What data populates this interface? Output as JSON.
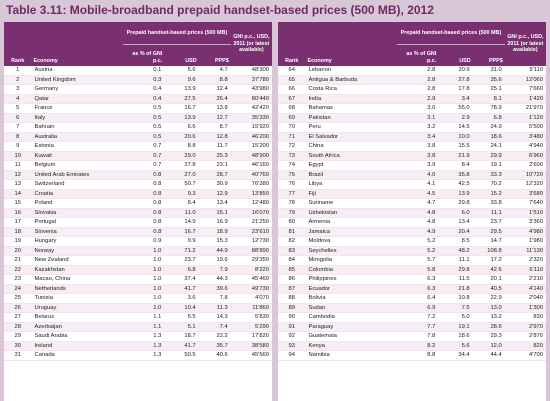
{
  "title": "Table 3.11: Mobile-broadband prepaid handset-based prices (500 MB), 2012",
  "headers": {
    "group": "Prepaid handset-based prices (500 MB)",
    "gni": "GNI p.c., USD, 2011 (or latest available)",
    "rank": "Rank",
    "economy": "Economy",
    "pct": "as % of GNI p.c.",
    "usd": "USD",
    "ppp": "PPP$"
  },
  "left_rows": [
    [
      "1",
      "Austria",
      "0.1",
      "5.6",
      "4.7",
      "48'300"
    ],
    [
      "2",
      "United Kingdom",
      "0.3",
      "9.6",
      "8.8",
      "37'780"
    ],
    [
      "3",
      "Germany",
      "0.4",
      "13.9",
      "12.4",
      "43'980"
    ],
    [
      "4",
      "Qatar",
      "0.4",
      "27.5",
      "26.4",
      "80'440"
    ],
    [
      "5",
      "France",
      "0.5",
      "16.7",
      "13.8",
      "42'420"
    ],
    [
      "6",
      "Italy",
      "0.5",
      "13.9",
      "12.7",
      "35'330"
    ],
    [
      "7",
      "Bahrain",
      "0.5",
      "6.6",
      "8.7",
      "15'920"
    ],
    [
      "8",
      "Australia",
      "0.5",
      "20.6",
      "12.8",
      "46'200"
    ],
    [
      "9",
      "Estonia",
      "0.7",
      "8.8",
      "11.7",
      "15'200"
    ],
    [
      "10",
      "Kuwait",
      "0.7",
      "29.0",
      "25.3",
      "48'900"
    ],
    [
      "11",
      "Belgium",
      "0.7",
      "27.8",
      "23.1",
      "46'160"
    ],
    [
      "12",
      "United Arab Emirates",
      "0.8",
      "27.0",
      "28.7",
      "40'760"
    ],
    [
      "13",
      "Switzerland",
      "0.8",
      "50.7",
      "30.9",
      "76'380"
    ],
    [
      "14",
      "Croatia",
      "0.8",
      "9.3",
      "12.9",
      "13'850"
    ],
    [
      "15",
      "Poland",
      "0.8",
      "8.4",
      "13.4",
      "12'480"
    ],
    [
      "16",
      "Slovakia",
      "0.8",
      "11.0",
      "15.1",
      "16'070"
    ],
    [
      "17",
      "Portugal",
      "0.8",
      "14.9",
      "16.9",
      "21'250"
    ],
    [
      "18",
      "Slovenia",
      "0.8",
      "16.7",
      "18.9",
      "23'610"
    ],
    [
      "19",
      "Hungary",
      "0.9",
      "9.9",
      "15.3",
      "12'730"
    ],
    [
      "20",
      "Norway",
      "1.0",
      "71.2",
      "44.9",
      "88'890"
    ],
    [
      "21",
      "New Zealand",
      "1.0",
      "23.7",
      "19.6",
      "29'350"
    ],
    [
      "22",
      "Kazakhstan",
      "1.0",
      "6.8",
      "7.9",
      "8'220"
    ],
    [
      "23",
      "Macao, China",
      "1.0",
      "37.4",
      "44.3",
      "45'460"
    ],
    [
      "24",
      "Netherlands",
      "1.0",
      "41.7",
      "39.6",
      "49'730"
    ],
    [
      "25",
      "Tunisia",
      "1.0",
      "3.6",
      "7.8",
      "4'070"
    ],
    [
      "26",
      "Uruguay",
      "1.0",
      "10.4",
      "11.3",
      "11'860"
    ],
    [
      "27",
      "Belarus",
      "1.1",
      "5.5",
      "14.3",
      "5'830"
    ],
    [
      "28",
      "Azerbaijan",
      "1.1",
      "5.1",
      "7.4",
      "5'290"
    ],
    [
      "29",
      "Saudi Arabia",
      "1.3",
      "18.7",
      "22.2",
      "17'820"
    ],
    [
      "30",
      "Ireland",
      "1.3",
      "41.7",
      "35.7",
      "38'580"
    ],
    [
      "31",
      "Canada",
      "1.3",
      "50.5",
      "40.6",
      "45'560"
    ]
  ],
  "right_rows": [
    [
      "64",
      "Lebanon",
      "2.8",
      "20.9",
      "31.0",
      "9'110"
    ],
    [
      "65",
      "Antigua & Barbuda",
      "2.8",
      "27.8",
      "35.6",
      "12'060"
    ],
    [
      "66",
      "Costa Rica",
      "2.8",
      "17.8",
      "25.1",
      "7'660"
    ],
    [
      "67",
      "India",
      "2.9",
      "3.4",
      "8.1",
      "1'420"
    ],
    [
      "68",
      "Bahamas",
      "3.0",
      "55.0",
      "78.9",
      "21'970"
    ],
    [
      "69",
      "Pakistan",
      "3.1",
      "2.9",
      "6.8",
      "1'120"
    ],
    [
      "70",
      "Peru",
      "3.2",
      "14.5",
      "24.9",
      "5'500"
    ],
    [
      "71",
      "El Salvador",
      "3.4",
      "10.0",
      "18.6",
      "3'480"
    ],
    [
      "72",
      "China",
      "3.8",
      "15.5",
      "24.1",
      "4'940"
    ],
    [
      "73",
      "South Africa",
      "3.8",
      "21.9",
      "29.9",
      "6'960"
    ],
    [
      "74",
      "Egypt",
      "3.9",
      "8.4",
      "19.1",
      "2'600"
    ],
    [
      "75",
      "Brazil",
      "4.0",
      "35.8",
      "33.3",
      "10'720"
    ],
    [
      "76",
      "Libya",
      "4.1",
      "42.5",
      "70.2",
      "12'320"
    ],
    [
      "77",
      "Fiji",
      "4.5",
      "13.9",
      "15.2",
      "3'680"
    ],
    [
      "78",
      "Suriname",
      "4.7",
      "29.8",
      "33.8",
      "7'640"
    ],
    [
      "79",
      "Uzbekistan",
      "4.8",
      "6.0",
      "11.1",
      "1'510"
    ],
    [
      "80",
      "Armenia",
      "4.8",
      "13.4",
      "23.7",
      "3'360"
    ],
    [
      "81",
      "Jamaica",
      "4.9",
      "20.4",
      "29.5",
      "4'980"
    ],
    [
      "82",
      "Moldova",
      "5.2",
      "8.5",
      "14.7",
      "1'980"
    ],
    [
      "83",
      "Seychelles",
      "5.2",
      "48.2",
      "108.8",
      "11'130"
    ],
    [
      "84",
      "Mongolia",
      "5.7",
      "11.1",
      "17.2",
      "2'320"
    ],
    [
      "85",
      "Colombia",
      "5.8",
      "29.8",
      "42.6",
      "6'110"
    ],
    [
      "86",
      "Philippines",
      "6.3",
      "11.5",
      "20.1",
      "2'210"
    ],
    [
      "87",
      "Ecuador",
      "6.3",
      "21.8",
      "40.5",
      "4'140"
    ],
    [
      "88",
      "Bolivia",
      "6.4",
      "10.8",
      "22.9",
      "2'040"
    ],
    [
      "89",
      "Sudan",
      "6.9",
      "7.5",
      "13.0",
      "1'300"
    ],
    [
      "90",
      "Cambodia",
      "7.2",
      "5.0",
      "13.2",
      "830"
    ],
    [
      "91",
      "Paraguay",
      "7.7",
      "19.1",
      "28.6",
      "2'970"
    ],
    [
      "92",
      "Guatemala",
      "7.8",
      "18.6",
      "29.3",
      "2'870"
    ],
    [
      "93",
      "Kenya",
      "8.2",
      "5.6",
      "12.0",
      "820"
    ],
    [
      "94",
      "Namibia",
      "8.8",
      "34.4",
      "44.4",
      "4'700"
    ]
  ]
}
